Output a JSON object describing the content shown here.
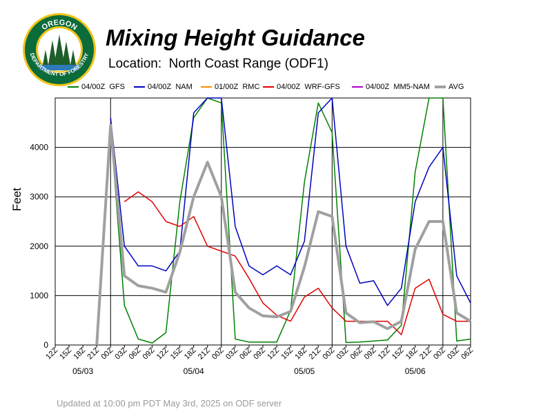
{
  "header": {
    "title": "Mixing Height Guidance",
    "subtitle": "Location:  North Coast Range (ODF1)"
  },
  "logo": {
    "top_text": "OREGON",
    "ring_text": "DEPARTMENT OF FORESTRY",
    "colors": {
      "ring": "#0b6b3a",
      "gold": "#f0c419",
      "tree": "#1d5e2a"
    }
  },
  "footer": {
    "text": "Updated at 10:00 pm PDT May 3rd, 2025 on ODF server"
  },
  "chart_data": {
    "type": "line",
    "title": "Mixing Height Guidance",
    "ylabel": "Feet",
    "xlabel": "",
    "ylim": [
      0,
      5000
    ],
    "yticks": [
      0,
      1000,
      2000,
      3000,
      4000
    ],
    "grid": true,
    "legend_position": "top",
    "x_tick_labels": [
      "12Z",
      "15Z",
      "18Z",
      "21Z",
      "00Z",
      "03Z",
      "06Z",
      "09Z",
      "12Z",
      "15Z",
      "18Z",
      "21Z",
      "00Z",
      "03Z",
      "06Z",
      "09Z",
      "12Z",
      "15Z",
      "18Z",
      "21Z",
      "00Z",
      "03Z",
      "06Z",
      "09Z",
      "12Z",
      "15Z",
      "18Z",
      "21Z",
      "00Z",
      "03Z",
      "06Z"
    ],
    "date_labels": [
      {
        "label": "05/03",
        "index": 2
      },
      {
        "label": "05/04",
        "index": 10
      },
      {
        "label": "05/05",
        "index": 18
      },
      {
        "label": "05/06",
        "index": 26
      }
    ],
    "day_boundaries": [
      4,
      12,
      20,
      28
    ],
    "series": [
      {
        "name": "04/00Z  GFS",
        "color": "#008000",
        "width": 1.5,
        "values": [
          null,
          null,
          null,
          null,
          4400,
          800,
          120,
          40,
          250,
          2900,
          4600,
          5000,
          4900,
          120,
          60,
          60,
          60,
          700,
          3300,
          4900,
          4300,
          50,
          60,
          80,
          100,
          400,
          3500,
          5000,
          5000,
          80,
          120
        ]
      },
      {
        "name": "04/00Z  NAM",
        "color": "#0000c0",
        "width": 1.5,
        "values": [
          null,
          null,
          null,
          null,
          4600,
          2000,
          1600,
          1600,
          1500,
          1900,
          4700,
          5000,
          5000,
          2400,
          1600,
          1420,
          1600,
          1420,
          2100,
          4700,
          5000,
          2000,
          1250,
          1300,
          800,
          1150,
          2900,
          3600,
          4000,
          1400,
          850
        ]
      },
      {
        "name": "01/00Z  RMC",
        "color": "#ff8c00",
        "width": 1.5,
        "values": []
      },
      {
        "name": "04/00Z  WRF-GFS",
        "color": "#e00000",
        "width": 1.5,
        "values": [
          null,
          null,
          null,
          null,
          null,
          2900,
          3100,
          2900,
          2500,
          2400,
          2600,
          2000,
          1900,
          1800,
          1350,
          850,
          600,
          480,
          970,
          1150,
          750,
          480,
          480,
          480,
          480,
          210,
          1150,
          1330,
          620,
          480,
          480
        ]
      },
      {
        "name": "04/00Z  MM5-NAM",
        "color": "#b000c0",
        "width": 1.5,
        "values": []
      },
      {
        "name": "AVG",
        "color": "#a0a0a0",
        "width": 4,
        "values": [
          null,
          null,
          null,
          0,
          4450,
          1400,
          1200,
          1150,
          1070,
          1880,
          3000,
          3700,
          3000,
          1070,
          750,
          590,
          570,
          680,
          1580,
          2700,
          2600,
          650,
          450,
          470,
          330,
          480,
          1940,
          2500,
          2500,
          650,
          480
        ]
      }
    ]
  }
}
